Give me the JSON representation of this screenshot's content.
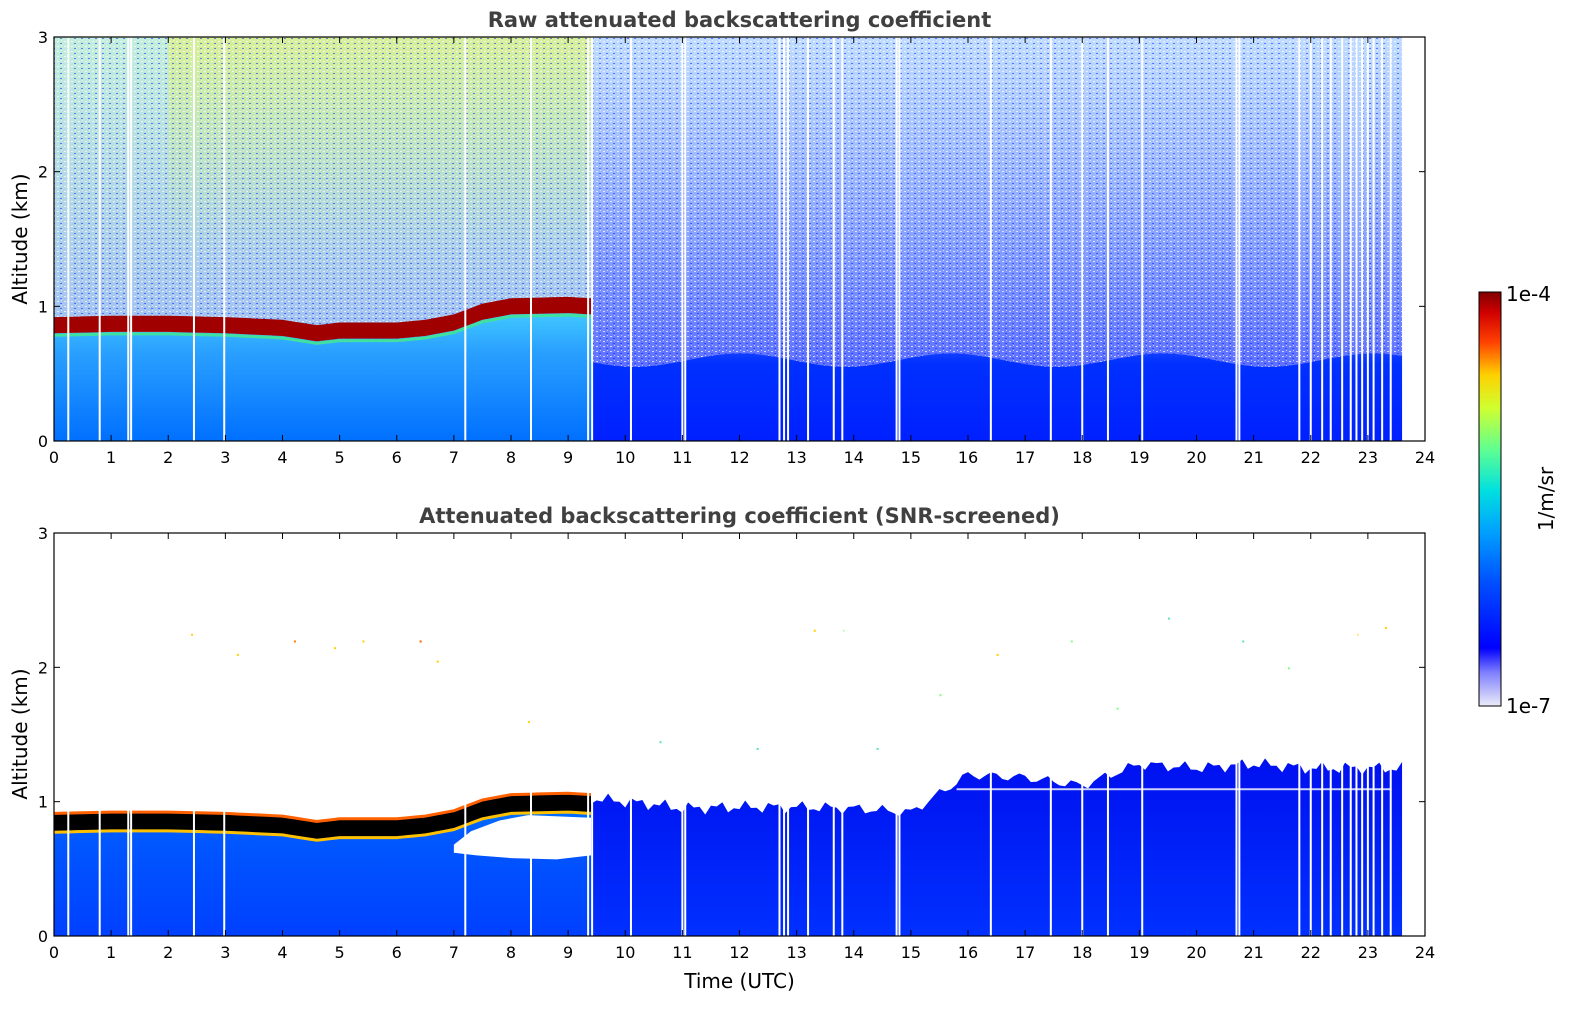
{
  "chart_data": [
    {
      "type": "heatmap",
      "title": "Raw attenuated backscattering coefficient",
      "xlabel": "",
      "ylabel": "Altitude (km)",
      "xlim": [
        0,
        24
      ],
      "ylim": [
        0,
        3
      ],
      "x_ticks": [
        "0",
        "1",
        "2",
        "3",
        "4",
        "5",
        "6",
        "7",
        "8",
        "9",
        "10",
        "11",
        "12",
        "13",
        "14",
        "15",
        "16",
        "17",
        "18",
        "19",
        "20",
        "21",
        "22",
        "23",
        "24"
      ],
      "y_ticks": [
        "0",
        "1",
        "2",
        "3"
      ],
      "data_end_hour": 23.6,
      "layer_top_km": [
        [
          0,
          0.92
        ],
        [
          1,
          0.93
        ],
        [
          2,
          0.93
        ],
        [
          3,
          0.92
        ],
        [
          4,
          0.9
        ],
        [
          4.6,
          0.86
        ],
        [
          5,
          0.88
        ],
        [
          6,
          0.88
        ],
        [
          6.5,
          0.9
        ],
        [
          7,
          0.94
        ],
        [
          7.5,
          1.02
        ],
        [
          8,
          1.06
        ],
        [
          9,
          1.07
        ],
        [
          9.4,
          1.06
        ]
      ],
      "gaps_hours": [
        0.25,
        0.8,
        1.3,
        1.35,
        2.45,
        2.98,
        7.2,
        8.35,
        9.35,
        9.42,
        10.1,
        11,
        11.05,
        12.7,
        12.78,
        12.85,
        13.2,
        13.65,
        13.8,
        14.75,
        14.8,
        16.4,
        17.45,
        18,
        18.45,
        19.05,
        20.7,
        20.75,
        21.8,
        22,
        22.2,
        22.35,
        22.55,
        22.7,
        22.8,
        22.9,
        23.0,
        23.1,
        23.25,
        23.4
      ],
      "colorbar": {
        "max_label": "1e-4",
        "min_label": "1e-7",
        "unit": "1/m/sr",
        "vmin": 1e-07,
        "vmax": 0.0001
      }
    },
    {
      "type": "heatmap",
      "title": "Attenuated backscattering coefficient (SNR-screened)",
      "xlabel": "Time (UTC)",
      "ylabel": "Altitude (km)",
      "xlim": [
        0,
        24
      ],
      "ylim": [
        0,
        3
      ],
      "x_ticks": [
        "0",
        "1",
        "2",
        "3",
        "4",
        "5",
        "6",
        "7",
        "8",
        "9",
        "10",
        "11",
        "12",
        "13",
        "14",
        "15",
        "16",
        "17",
        "18",
        "19",
        "20",
        "21",
        "22",
        "23",
        "24"
      ],
      "y_ticks": [
        "0",
        "1",
        "2",
        "3"
      ],
      "data_end_hour": 23.6,
      "screened_top_km": [
        [
          9.5,
          1.02
        ],
        [
          10.5,
          0.98
        ],
        [
          11,
          0.95
        ],
        [
          12,
          0.96
        ],
        [
          13,
          0.96
        ],
        [
          14,
          0.95
        ],
        [
          15,
          0.92
        ],
        [
          16,
          1.2
        ],
        [
          17,
          1.18
        ],
        [
          18,
          1.12
        ],
        [
          19,
          1.28
        ],
        [
          20,
          1.25
        ],
        [
          21,
          1.28
        ],
        [
          22,
          1.25
        ],
        [
          23,
          1.25
        ],
        [
          23.6,
          1.25
        ]
      ]
    }
  ]
}
